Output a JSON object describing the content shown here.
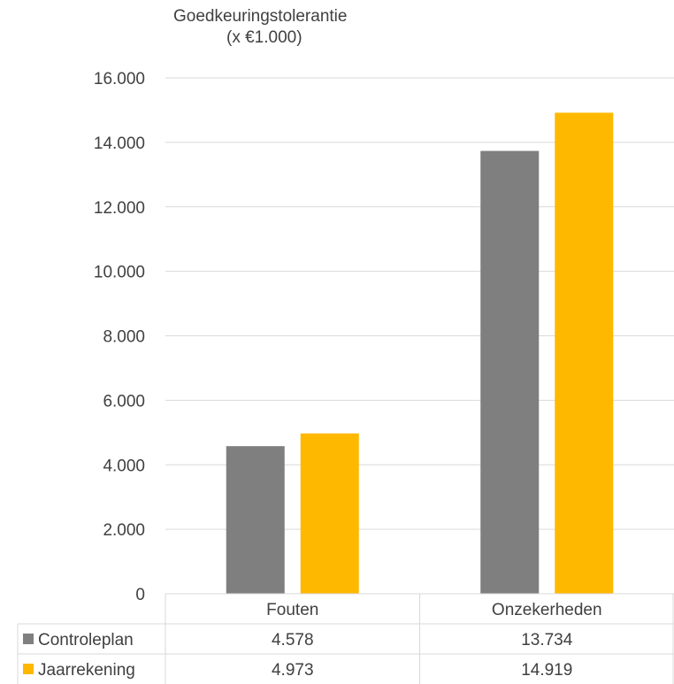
{
  "chart_data": {
    "type": "bar",
    "title": [
      "Goedkeuringstolerantie",
      "(x €1.000)"
    ],
    "categories": [
      "Fouten",
      "Onzekerheden"
    ],
    "series": [
      {
        "name": "Controleplan",
        "color": "#7f7f7f",
        "values": [
          4578,
          13734
        ],
        "labels": [
          "4.578",
          "13.734"
        ]
      },
      {
        "name": "Jaarrekening",
        "color": "#ffb800",
        "values": [
          4973,
          14919
        ],
        "labels": [
          "4.973",
          "14.919"
        ]
      }
    ],
    "ylim": [
      0,
      16000
    ],
    "yticks": [
      0,
      2000,
      4000,
      6000,
      8000,
      10000,
      12000,
      14000,
      16000
    ],
    "ytick_labels": [
      "0",
      "2.000",
      "4.000",
      "6.000",
      "8.000",
      "10.000",
      "12.000",
      "14.000",
      "16.000"
    ],
    "grid": true,
    "legend": "data-table"
  }
}
